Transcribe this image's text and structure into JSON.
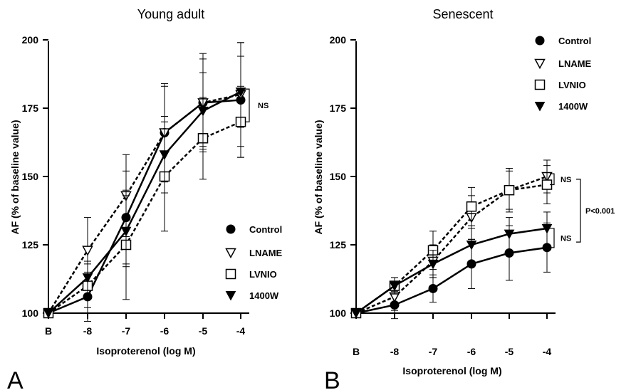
{
  "chart_data": [
    {
      "type": "line",
      "panel_letter": "A",
      "title": "Young adult",
      "xlabel": "Isoproterenol (log M)",
      "ylabel": "AF (% of baseline value)",
      "categories": [
        "B",
        "-8",
        "-7",
        "-6",
        "-5",
        "-4"
      ],
      "yticks": [
        100,
        125,
        150,
        175,
        200
      ],
      "ylim": [
        100,
        200
      ],
      "grid": false,
      "legend_position": "bottom-right",
      "series": [
        {
          "name": "Control",
          "style": "solid",
          "marker": "filled-circle",
          "values": [
            100,
            106,
            135,
            166,
            177,
            178
          ],
          "errors": [
            0,
            9,
            17,
            18,
            18,
            21
          ]
        },
        {
          "name": "LNAME",
          "style": "dashed",
          "marker": "open-triangle-down",
          "values": [
            100,
            123,
            143,
            166,
            177,
            180
          ],
          "errors": [
            0,
            12,
            15,
            17,
            16,
            19
          ]
        },
        {
          "name": "LVNIO",
          "style": "dashed",
          "marker": "open-square",
          "values": [
            100,
            110,
            125,
            150,
            164,
            170
          ],
          "errors": [
            0,
            8,
            20,
            20,
            15,
            13
          ]
        },
        {
          "name": "1400W",
          "style": "solid",
          "marker": "filled-triangle-down",
          "values": [
            100,
            113,
            130,
            158,
            174,
            181
          ],
          "errors": [
            0,
            6,
            13,
            14,
            14,
            13
          ]
        }
      ],
      "annotations": [
        {
          "text": "NS",
          "bracket_y": [
            170,
            182
          ]
        }
      ]
    },
    {
      "type": "line",
      "panel_letter": "B",
      "title": "Senescent",
      "xlabel": "Isoproterenol (log M)",
      "ylabel": "AF (% of baseline value)",
      "categories": [
        "B",
        "-8",
        "-7",
        "-6",
        "-5",
        "-4"
      ],
      "yticks": [
        100,
        125,
        150,
        175,
        200
      ],
      "ylim": [
        100,
        200
      ],
      "grid": false,
      "legend_position": "top-right",
      "series": [
        {
          "name": "Control",
          "style": "solid",
          "marker": "filled-circle",
          "values": [
            100,
            103,
            109,
            118,
            122,
            124
          ],
          "errors": [
            0,
            5,
            5,
            9,
            10,
            9
          ]
        },
        {
          "name": "LNAME",
          "style": "dashed",
          "marker": "open-triangle-down",
          "values": [
            100,
            106,
            119,
            135,
            145,
            150
          ],
          "errors": [
            0,
            5,
            6,
            8,
            7,
            6
          ]
        },
        {
          "name": "LVNIO",
          "style": "dashed",
          "marker": "open-square",
          "values": [
            100,
            110,
            123,
            139,
            145,
            147
          ],
          "errors": [
            0,
            3,
            7,
            7,
            8,
            7
          ]
        },
        {
          "name": "1400W",
          "style": "solid",
          "marker": "filled-triangle-down",
          "values": [
            100,
            110,
            118,
            125,
            129,
            131
          ],
          "errors": [
            0,
            3,
            5,
            6,
            6,
            6
          ]
        }
      ],
      "annotations": [
        {
          "text": "NS",
          "bracket_y": [
            147,
            151
          ]
        },
        {
          "text": "NS",
          "bracket_y": [
            124,
            131
          ]
        },
        {
          "text": "P<0.001",
          "bracket_y": [
            126,
            149
          ]
        }
      ]
    }
  ]
}
